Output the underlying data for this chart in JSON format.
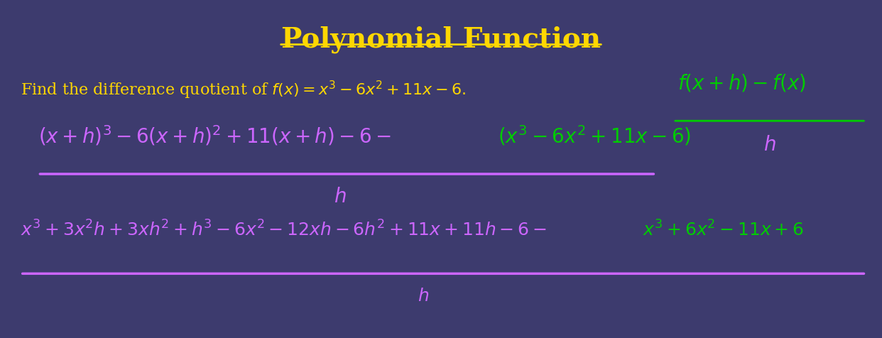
{
  "background_color": "#3d3b6e",
  "title": "Polynomial Function",
  "title_color": "#FFD700",
  "title_fontsize": 28,
  "fig_width": 12.42,
  "fig_height": 4.76,
  "line1_text": "Find the difference quotient of $f(x) = x^3 - 6x^2 + 11x - 6.$",
  "line1_color": "#FFD700",
  "line1_fontsize": 16,
  "formula_color": "#00CC00",
  "formula_fontsize": 22,
  "row1_color_purple": "#CC66FF",
  "row1_color_green": "#00CC00",
  "row1_fontsize": 20,
  "row2_color_purple": "#CC66FF",
  "row2_color_green": "#00CC00",
  "row2_fontsize": 18,
  "line_color": "#CC66FF",
  "denom_color": "#CC66FF"
}
